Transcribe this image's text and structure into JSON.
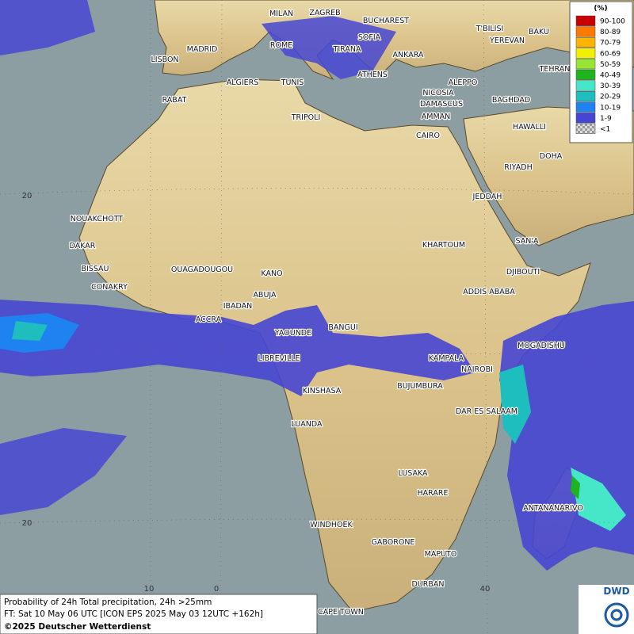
{
  "map": {
    "cities": [
      "MILAN",
      "ZAGREB",
      "BUCHAREST",
      "T'BILISI",
      "BAKU",
      "MADRID",
      "ROME",
      "SOFIA",
      "YEREVAN",
      "LISBON",
      "TIRANA",
      "ANKARA",
      "TEHRAN",
      "ALGIERS",
      "TUNIS",
      "ATHENS",
      "ALEPPO",
      "RABAT",
      "NICOSIA",
      "BAGHDAD",
      "DAMASCUS",
      "TRIPOLI",
      "AMMAN",
      "HAWALLI",
      "CAIRO",
      "DOHA",
      "RIYADH",
      "JEDDAH",
      "NOUAKCHOTT",
      "KHARTOUM",
      "SAN'A",
      "DAKAR",
      "BISSAU",
      "OUAGADOUGOU",
      "DJIBOUTI",
      "KANO",
      "CONAKRY",
      "ABUJA",
      "ADDIS ABABA",
      "IBADAN",
      "ACCRA",
      "BANGUI",
      "YAOUNDE",
      "MOGADISHU",
      "LIBREVILLE",
      "KAMPALA",
      "NAIROBI",
      "BUJUMBURA",
      "KINSHASA",
      "DAR ES SALAAM",
      "LUANDA",
      "LUSAKA",
      "HARARE",
      "ANTANANARIVO",
      "WINDHOEK",
      "GABORONE",
      "MAPUTO",
      "DURBAN",
      "CAPE TOWN"
    ],
    "grid_labels": [
      "20",
      "20",
      "10",
      "0",
      "40"
    ]
  },
  "legend": {
    "title": "(%)",
    "items": [
      {
        "label": "90-100",
        "color": "#c80000"
      },
      {
        "label": "80-89",
        "color": "#ff7800"
      },
      {
        "label": "70-79",
        "color": "#ffb400"
      },
      {
        "label": "60-69",
        "color": "#f0f000"
      },
      {
        "label": "50-59",
        "color": "#96e632"
      },
      {
        "label": "40-49",
        "color": "#1eb41e"
      },
      {
        "label": "30-39",
        "color": "#46e6c8"
      },
      {
        "label": "20-29",
        "color": "#1ebebe"
      },
      {
        "label": "10-19",
        "color": "#1e82f0"
      },
      {
        "label": "1-9",
        "color": "#4646d2"
      },
      {
        "label": "<1",
        "color": "#bbbbbb"
      }
    ]
  },
  "footer": {
    "line1": "Probability of 24h Total precipitation, 24h >25mm",
    "line2": "FT: Sat 10 May 06 UTC [ICON EPS 2025 May 03 12UTC +162h]",
    "copyright": "©2025 Deutscher Wetterdienst"
  },
  "logo": "DWD"
}
